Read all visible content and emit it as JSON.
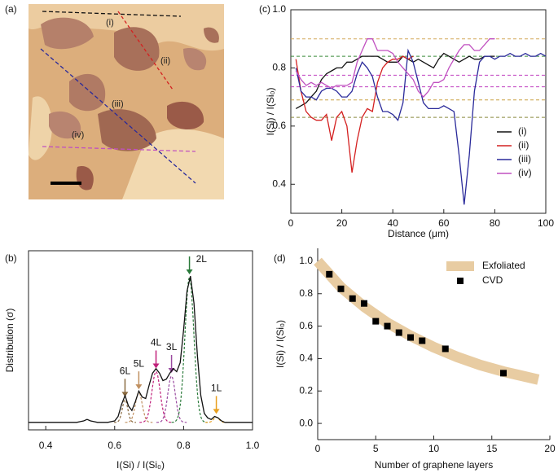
{
  "chart_data": [
    {
      "type": "image",
      "panel_label": "(a)",
      "annotations": [
        "(i)",
        "(ii)",
        "(iii)",
        "(iv)"
      ]
    },
    {
      "type": "line",
      "panel_label": "(c)",
      "xlabel": "Distance (μm)",
      "ylabel": "I(Si) / I(Si₀)",
      "xlim": [
        0,
        100
      ],
      "xticks": [
        0,
        20,
        40,
        60,
        80,
        100
      ],
      "ylim": [
        0.3,
        1.0
      ],
      "yticks": [
        0.4,
        0.6,
        0.8,
        {
          "value": 1.0,
          "label": "1.0"
        }
      ],
      "x": [
        0,
        2,
        4,
        6,
        8,
        10,
        12,
        14,
        16,
        18,
        20,
        22,
        24,
        26,
        28,
        30,
        32,
        34,
        36,
        38,
        40,
        42,
        44,
        46,
        48,
        50,
        52,
        54,
        56,
        58,
        60,
        62,
        64,
        66,
        68,
        70,
        72,
        74,
        76,
        78,
        80,
        82,
        84,
        86,
        88,
        90,
        92,
        94,
        96,
        98,
        100
      ],
      "hlines": [
        {
          "value": 0.9,
          "color": "#d4a85a"
        },
        {
          "value": 0.84,
          "color": "#3a8a3a"
        },
        {
          "value": 0.775,
          "color": "#c040c0"
        },
        {
          "value": 0.735,
          "color": "#c040c0"
        },
        {
          "value": 0.69,
          "color": "#c8a040"
        },
        {
          "value": 0.63,
          "color": "#8a8a40"
        }
      ],
      "series": [
        {
          "name": "(i)",
          "color": "#111111",
          "values": [
            null,
            0.66,
            0.67,
            0.68,
            0.7,
            0.72,
            0.76,
            0.78,
            0.79,
            0.8,
            0.8,
            0.82,
            0.82,
            0.83,
            0.84,
            0.84,
            0.84,
            0.84,
            0.83,
            0.82,
            0.82,
            0.82,
            0.84,
            0.83,
            0.82,
            0.83,
            0.82,
            0.81,
            0.8,
            0.83,
            0.85,
            0.84,
            0.83,
            0.82,
            0.83,
            0.84,
            0.83,
            0.83,
            0.84,
            0.84,
            0.84,
            null,
            null,
            null,
            null,
            null,
            null,
            null,
            null,
            null,
            null
          ]
        },
        {
          "name": "(ii)",
          "color": "#d42020",
          "values": [
            null,
            0.83,
            0.72,
            0.65,
            0.63,
            0.62,
            0.62,
            0.64,
            0.55,
            0.63,
            0.65,
            0.6,
            0.44,
            0.55,
            0.63,
            0.66,
            0.65,
            0.75,
            0.8,
            0.82,
            0.83,
            0.83,
            0.84,
            0.83,
            0.84,
            null,
            null,
            null,
            null,
            null,
            null,
            null,
            null,
            null,
            null,
            null,
            null,
            null,
            null,
            null,
            null,
            null,
            null,
            null,
            null,
            null,
            null,
            null,
            null,
            null,
            null
          ]
        },
        {
          "name": "(iii)",
          "color": "#2a2a9a",
          "values": [
            null,
            0.8,
            0.72,
            0.7,
            0.7,
            0.69,
            0.72,
            0.73,
            0.73,
            0.72,
            0.7,
            0.7,
            0.72,
            0.78,
            0.82,
            0.8,
            0.77,
            0.7,
            0.65,
            0.65,
            0.64,
            0.62,
            0.68,
            0.86,
            0.82,
            0.75,
            0.68,
            0.66,
            0.66,
            0.66,
            0.67,
            0.66,
            0.65,
            0.5,
            0.33,
            0.5,
            0.72,
            0.82,
            0.84,
            0.84,
            0.83,
            0.84,
            0.84,
            0.85,
            0.84,
            0.84,
            0.85,
            0.84,
            0.84,
            0.85,
            0.84
          ]
        },
        {
          "name": "(iv)",
          "color": "#c050c0",
          "values": [
            null,
            0.79,
            0.76,
            0.74,
            0.75,
            0.74,
            0.75,
            0.74,
            0.73,
            0.74,
            0.74,
            0.74,
            0.75,
            0.82,
            0.86,
            0.9,
            0.9,
            0.86,
            0.86,
            0.86,
            0.85,
            0.82,
            0.8,
            0.78,
            0.76,
            0.72,
            0.7,
            0.72,
            0.75,
            0.75,
            0.76,
            0.8,
            0.83,
            0.86,
            0.88,
            0.88,
            0.86,
            0.86,
            0.88,
            0.9,
            0.9,
            null,
            null,
            null,
            null,
            null,
            null,
            null,
            null,
            null,
            null
          ]
        }
      ]
    },
    {
      "type": "density",
      "panel_label": "(b)",
      "xlabel": "I(Si) / I(Si₀)",
      "ylabel": "Distribution (σ)",
      "xlim": [
        0.35,
        1.0
      ],
      "xticks": [
        0.4,
        0.6,
        0.8,
        {
          "value": 1.0,
          "label": "1.0"
        }
      ],
      "ylim": [
        -0.05,
        1.15
      ],
      "x": [
        0.35,
        0.36,
        0.37,
        0.38,
        0.39,
        0.4,
        0.41,
        0.42,
        0.43,
        0.44,
        0.45,
        0.46,
        0.47,
        0.48,
        0.49,
        0.5,
        0.51,
        0.52,
        0.53,
        0.54,
        0.55,
        0.56,
        0.57,
        0.58,
        0.59,
        0.6,
        0.61,
        0.62,
        0.63,
        0.64,
        0.65,
        0.66,
        0.67,
        0.68,
        0.69,
        0.7,
        0.71,
        0.72,
        0.73,
        0.74,
        0.75,
        0.76,
        0.77,
        0.78,
        0.79,
        0.8,
        0.81,
        0.82,
        0.83,
        0.84,
        0.85,
        0.86,
        0.87,
        0.88,
        0.89,
        0.9,
        0.91,
        0.92,
        0.93,
        0.94,
        0.95,
        0.96,
        0.97,
        0.98,
        0.99,
        1.0
      ],
      "values": [
        0,
        0,
        0,
        0,
        0,
        0,
        0,
        0,
        0,
        0,
        0,
        0,
        0,
        0,
        0,
        0.005,
        0.01,
        0.02,
        0.01,
        0.005,
        0,
        0,
        0,
        0,
        0.005,
        0.01,
        0.04,
        0.12,
        0.18,
        0.11,
        0.08,
        0.14,
        0.21,
        0.17,
        0.16,
        0.25,
        0.33,
        0.36,
        0.33,
        0.28,
        0.29,
        0.33,
        0.36,
        0.34,
        0.4,
        0.62,
        0.88,
        0.98,
        0.8,
        0.45,
        0.18,
        0.06,
        0.03,
        0.02,
        0.04,
        0.03,
        0.01,
        0,
        0,
        0,
        0,
        0,
        0,
        0,
        0,
        0
      ],
      "color": "#111111",
      "components": [
        {
          "name": "6L",
          "color": "#8a6a40",
          "center": 0.63,
          "amplitude": 0.15,
          "width": 0.008
        },
        {
          "name": "5L",
          "color": "#c09060",
          "center": 0.67,
          "amplitude": 0.2,
          "width": 0.01
        },
        {
          "name": "4L",
          "color": "#c0207a",
          "center": 0.72,
          "amplitude": 0.34,
          "width": 0.012
        },
        {
          "name": "3L",
          "color": "#9a4aa0",
          "center": 0.765,
          "amplitude": 0.31,
          "width": 0.011
        },
        {
          "name": "2L",
          "color": "#2a7a3a",
          "center": 0.817,
          "amplitude": 0.97,
          "width": 0.013
        },
        {
          "name": "1L",
          "color": "#e8a020",
          "center": 0.895,
          "amplitude": 0.035,
          "width": 0.008
        }
      ]
    },
    {
      "type": "scatter",
      "panel_label": "(d)",
      "xlabel": "Number of graphene layers",
      "ylabel": "I(Si) / I(Si₀)",
      "xlim": [
        0,
        20
      ],
      "xticks": [
        0,
        5,
        10,
        15,
        20
      ],
      "ylim": [
        -0.1,
        1.08
      ],
      "yticks": [
        {
          "value": 0,
          "label": "0.0"
        },
        0.2,
        0.4,
        0.6,
        0.8,
        {
          "value": 1.0,
          "label": "1.0"
        }
      ],
      "series": [
        {
          "name": "Exfoliated",
          "color": "#e8cca2",
          "style": "band",
          "x": [
            0,
            2,
            4,
            6,
            8,
            10,
            12,
            14,
            16,
            19
          ],
          "values": [
            1.0,
            0.84,
            0.72,
            0.62,
            0.54,
            0.47,
            0.41,
            0.36,
            0.32,
            0.27
          ]
        },
        {
          "name": "CVD",
          "color": "#000000",
          "style": "square",
          "x": [
            1,
            2,
            3,
            4,
            5,
            6,
            7,
            8,
            9,
            11,
            16
          ],
          "values": [
            0.92,
            0.83,
            0.77,
            0.74,
            0.63,
            0.6,
            0.56,
            0.53,
            0.51,
            0.46,
            0.31
          ]
        }
      ]
    }
  ]
}
